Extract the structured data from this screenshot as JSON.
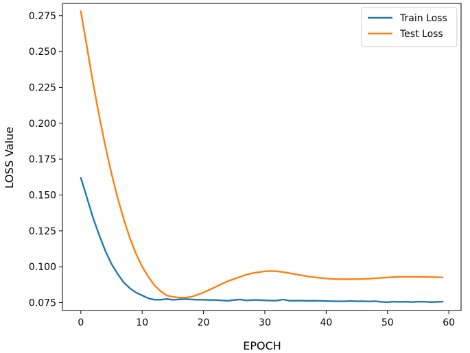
{
  "chart_data": {
    "type": "line",
    "title": "",
    "xlabel": "EPOCH",
    "ylabel": "LOSS  Value",
    "xlim": [
      -3,
      62
    ],
    "ylim": [
      0.0695,
      0.2835
    ],
    "xticks": [
      0,
      10,
      20,
      30,
      40,
      50,
      60
    ],
    "xtick_labels": [
      "0",
      "10",
      "20",
      "30",
      "40",
      "50",
      "60"
    ],
    "yticks": [
      0.075,
      0.1,
      0.125,
      0.15,
      0.175,
      0.2,
      0.225,
      0.25,
      0.275
    ],
    "ytick_labels": [
      "0.075",
      "0.100",
      "0.125",
      "0.150",
      "0.175",
      "0.200",
      "0.225",
      "0.250",
      "0.275"
    ],
    "grid": false,
    "legend_position": "top-right",
    "series": [
      {
        "name": "Train Loss",
        "color": "#1f77b4",
        "x": [
          0,
          1,
          2,
          3,
          4,
          5,
          6,
          7,
          8,
          9,
          10,
          11,
          12,
          13,
          14,
          15,
          16,
          17,
          18,
          19,
          20,
          21,
          22,
          23,
          24,
          25,
          26,
          27,
          28,
          29,
          30,
          31,
          32,
          33,
          34,
          35,
          36,
          37,
          38,
          39,
          40,
          41,
          42,
          43,
          44,
          45,
          46,
          47,
          48,
          49,
          50,
          51,
          52,
          53,
          54,
          55,
          56,
          57,
          58,
          59
        ],
        "values": [
          0.162,
          0.148,
          0.134,
          0.122,
          0.111,
          0.102,
          0.095,
          0.089,
          0.085,
          0.082,
          0.08,
          0.078,
          0.077,
          0.077,
          0.0775,
          0.077,
          0.0772,
          0.0775,
          0.0772,
          0.077,
          0.077,
          0.0768,
          0.0768,
          0.0765,
          0.0763,
          0.0768,
          0.0772,
          0.0765,
          0.0768,
          0.0768,
          0.0766,
          0.0764,
          0.0764,
          0.0772,
          0.0763,
          0.0763,
          0.0764,
          0.0762,
          0.0763,
          0.0762,
          0.0761,
          0.076,
          0.0759,
          0.0759,
          0.0761,
          0.0759,
          0.076,
          0.0758,
          0.076,
          0.0755,
          0.0753,
          0.0757,
          0.0755,
          0.0756,
          0.0754,
          0.0756,
          0.0756,
          0.0753,
          0.0755,
          0.0757
        ]
      },
      {
        "name": "Test Loss",
        "color": "#ff7f0e",
        "x": [
          0,
          1,
          2,
          3,
          4,
          5,
          6,
          7,
          8,
          9,
          10,
          11,
          12,
          13,
          14,
          15,
          16,
          17,
          18,
          19,
          20,
          21,
          22,
          23,
          24,
          25,
          26,
          27,
          28,
          29,
          30,
          31,
          32,
          33,
          34,
          35,
          36,
          37,
          38,
          39,
          40,
          41,
          42,
          43,
          44,
          45,
          46,
          47,
          48,
          49,
          50,
          51,
          52,
          53,
          54,
          55,
          56,
          57,
          58,
          59
        ],
        "values": [
          0.278,
          0.253,
          0.228,
          0.205,
          0.184,
          0.165,
          0.148,
          0.133,
          0.12,
          0.109,
          0.1,
          0.093,
          0.087,
          0.083,
          0.08,
          0.079,
          0.0785,
          0.0785,
          0.079,
          0.0805,
          0.082,
          0.084,
          0.086,
          0.088,
          0.09,
          0.0915,
          0.093,
          0.0945,
          0.0955,
          0.0962,
          0.0968,
          0.097,
          0.0968,
          0.0963,
          0.0955,
          0.0948,
          0.094,
          0.0933,
          0.0927,
          0.0922,
          0.0918,
          0.0915,
          0.0913,
          0.0913,
          0.0913,
          0.0914,
          0.0915,
          0.0917,
          0.092,
          0.0922,
          0.0925,
          0.0928,
          0.093,
          0.093,
          0.093,
          0.093,
          0.0929,
          0.0928,
          0.0927,
          0.0926
        ]
      }
    ]
  }
}
